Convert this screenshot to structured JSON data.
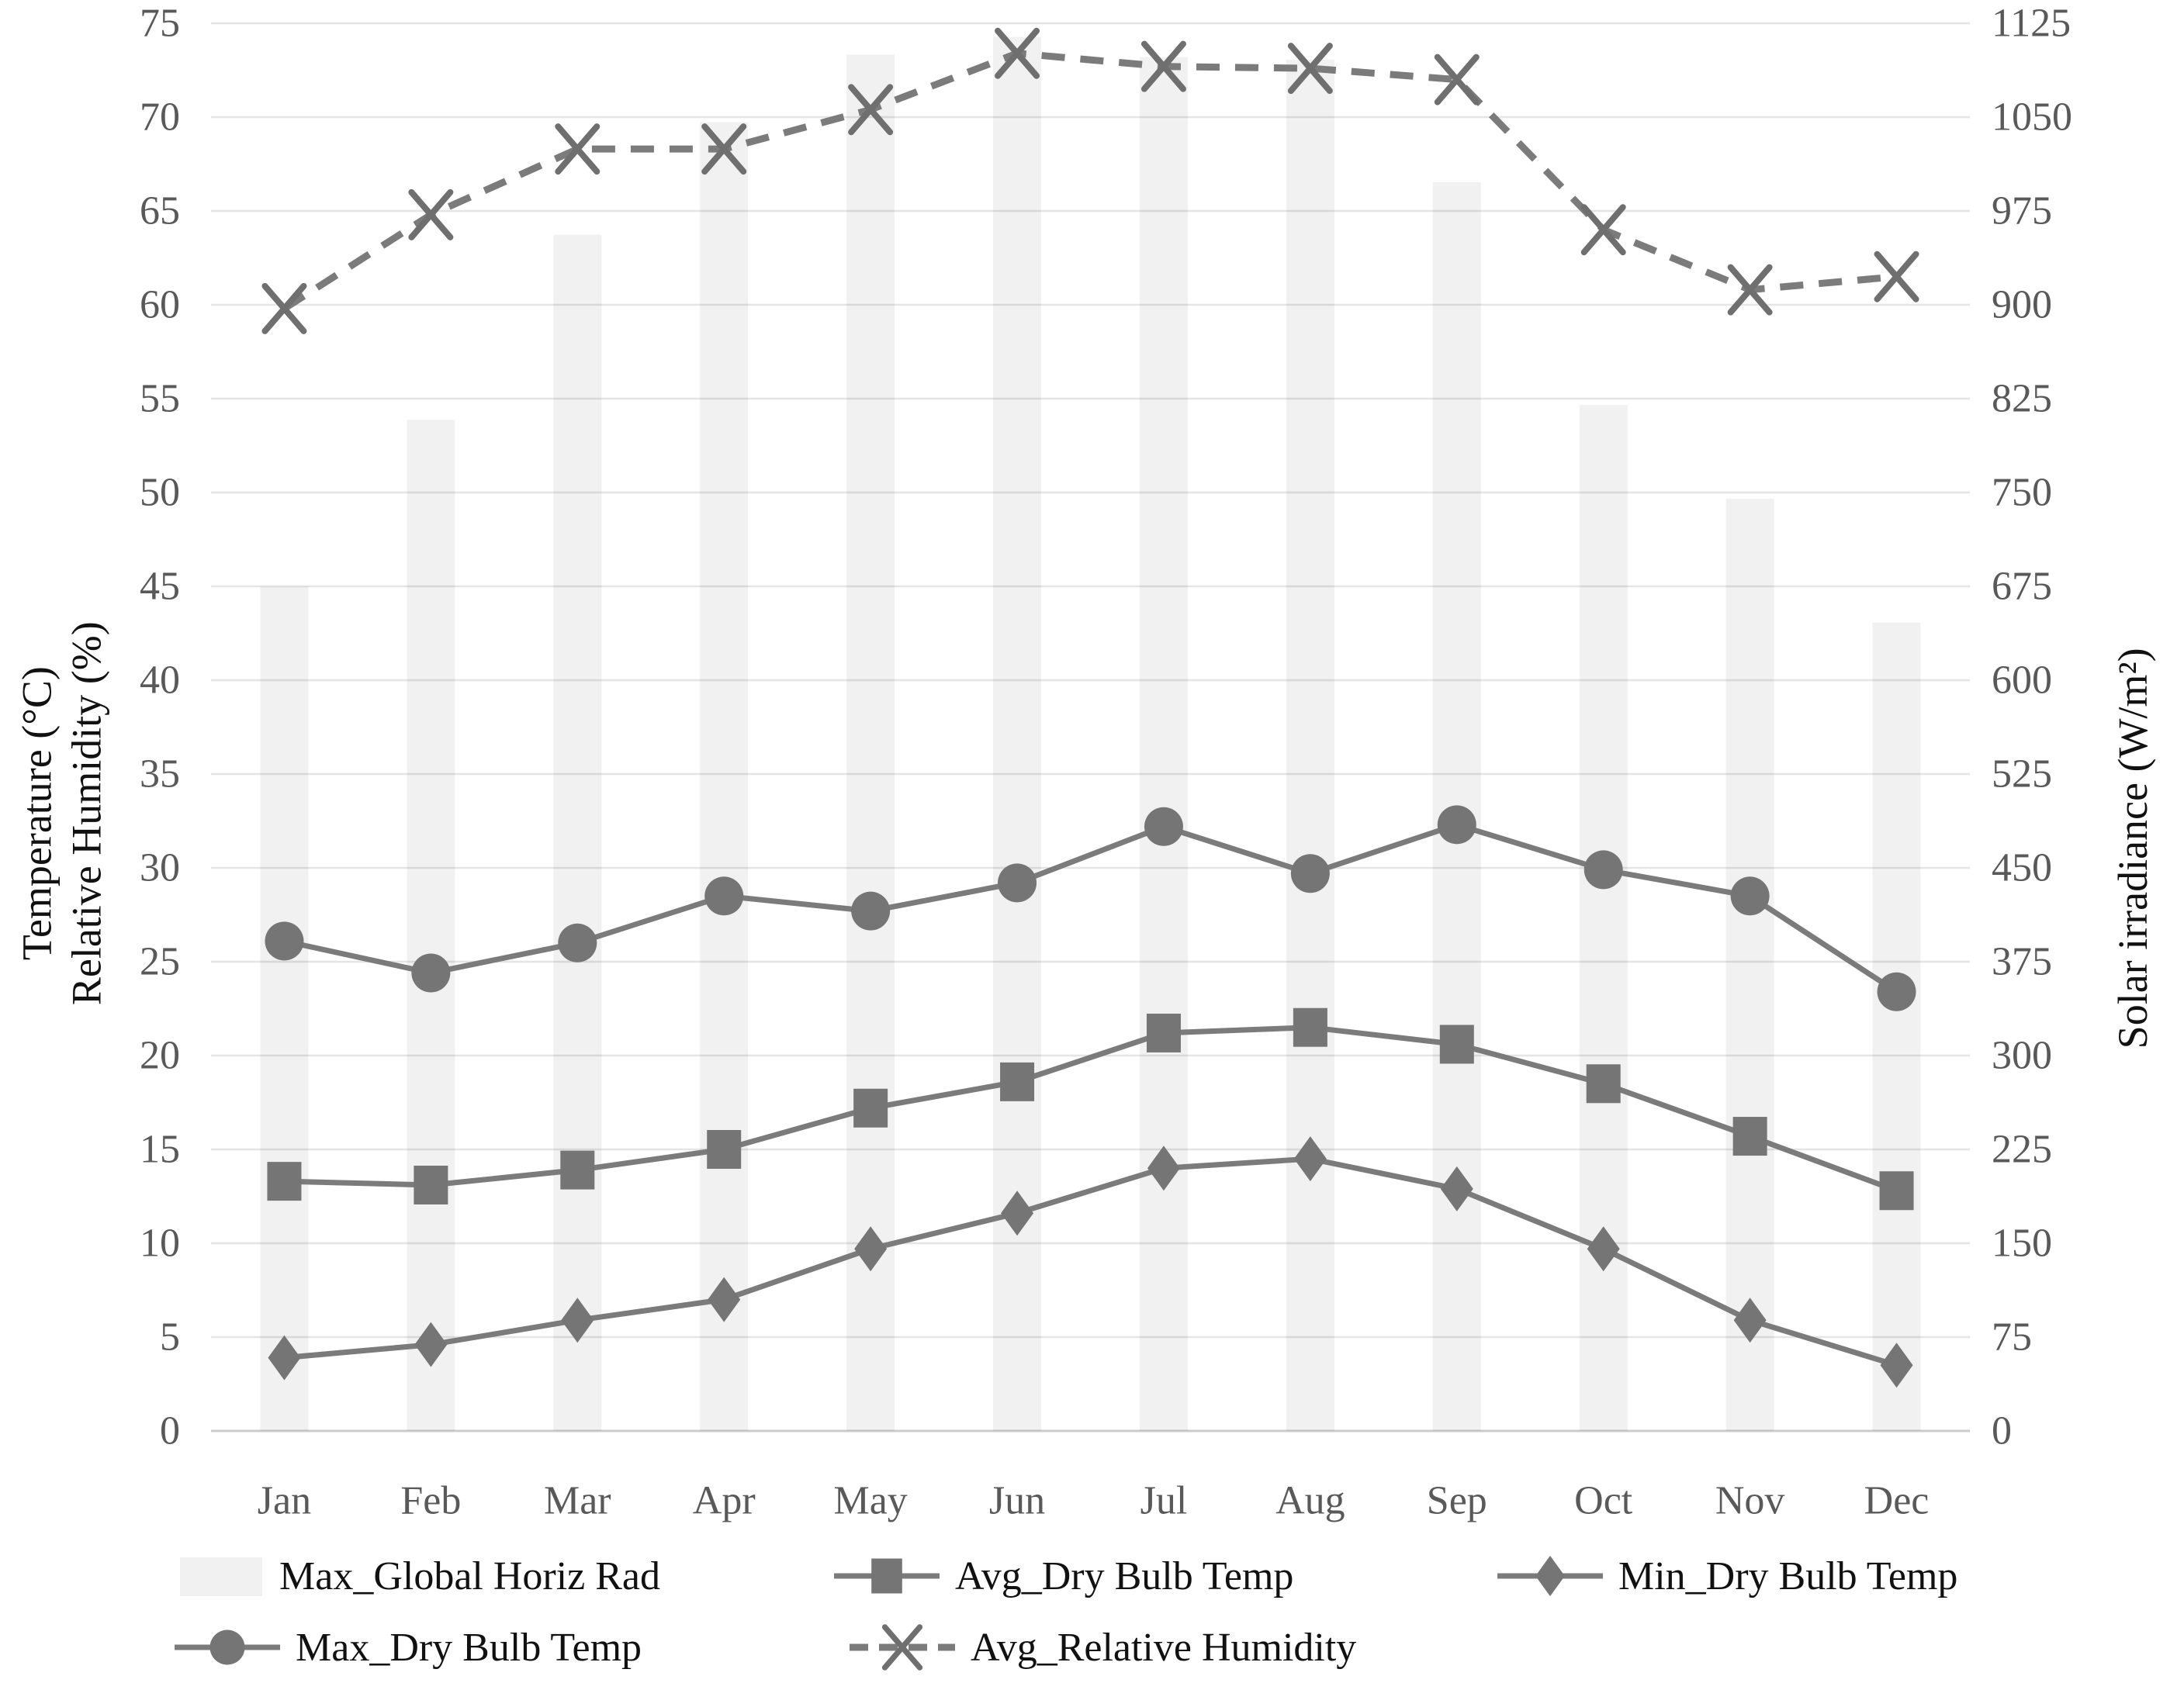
{
  "chart_data": {
    "type": "bar",
    "title": "",
    "categories": [
      "Jan",
      "Feb",
      "Mar",
      "Apr",
      "May",
      "Jun",
      "Jul",
      "Aug",
      "Sep",
      "Oct",
      "Nov",
      "Dec"
    ],
    "series": [
      {
        "name": "Max_Global Horiz Rad",
        "type": "bar",
        "axis": "right",
        "marker": "swatch",
        "values": [
          675,
          808,
          956,
          1046,
          1100,
          1114,
          1098,
          1096,
          998,
          820,
          745,
          646
        ]
      },
      {
        "name": "Avg_Dry Bulb Temp",
        "type": "line",
        "axis": "left",
        "marker": "square",
        "dashed": false,
        "values": [
          13.3,
          13.1,
          13.9,
          15.0,
          17.2,
          18.6,
          21.2,
          21.5,
          20.6,
          18.5,
          15.7,
          12.8
        ]
      },
      {
        "name": "Min_Dry Bulb Temp",
        "type": "line",
        "axis": "left",
        "marker": "diamond",
        "dashed": false,
        "values": [
          3.9,
          4.6,
          5.9,
          7.0,
          9.7,
          11.6,
          14.0,
          14.5,
          12.9,
          9.7,
          5.9,
          3.5
        ]
      },
      {
        "name": "Max_Dry Bulb Temp",
        "type": "line",
        "axis": "left",
        "marker": "circle",
        "dashed": false,
        "values": [
          26.1,
          24.4,
          26.0,
          28.5,
          27.7,
          29.2,
          32.2,
          29.7,
          32.3,
          29.9,
          28.5,
          23.4
        ]
      },
      {
        "name": "Avg_Relative Humidity",
        "type": "line",
        "axis": "left",
        "marker": "x",
        "dashed": true,
        "values": [
          59.8,
          64.8,
          68.3,
          68.3,
          70.4,
          73.4,
          72.7,
          72.6,
          72.0,
          64.0,
          60.8,
          61.5
        ]
      }
    ],
    "left_axis": {
      "title_line1": "Temperature (°C)",
      "title_line2": "Relative Humidity (%)",
      "min": 0,
      "max": 75,
      "step": 5,
      "ticks": [
        0,
        5,
        10,
        15,
        20,
        25,
        30,
        35,
        40,
        45,
        50,
        55,
        60,
        65,
        70,
        75
      ]
    },
    "right_axis": {
      "title": "Solar irradiance (W/m²)",
      "min": 0,
      "max": 1125,
      "step": 75,
      "ticks": [
        0,
        75,
        150,
        225,
        300,
        375,
        450,
        525,
        600,
        675,
        750,
        825,
        900,
        975,
        1050,
        1125
      ]
    },
    "grid": true,
    "legend_position": "bottom",
    "legend_order": [
      "Max_Global Horiz Rad",
      "Avg_Dry Bulb Temp",
      "Min_Dry Bulb Temp",
      "Max_Dry Bulb Temp",
      "Avg_Relative Humidity"
    ],
    "colors": {
      "bar_fill": "#f1f1f1",
      "line": "#7b7b7b",
      "marker": "#757575",
      "x_marker": "#6f6f6f",
      "grid": "rgba(0,0,0,0.10)",
      "baseline": "rgba(0,0,0,0.20)",
      "tick_text": "#595959"
    }
  }
}
